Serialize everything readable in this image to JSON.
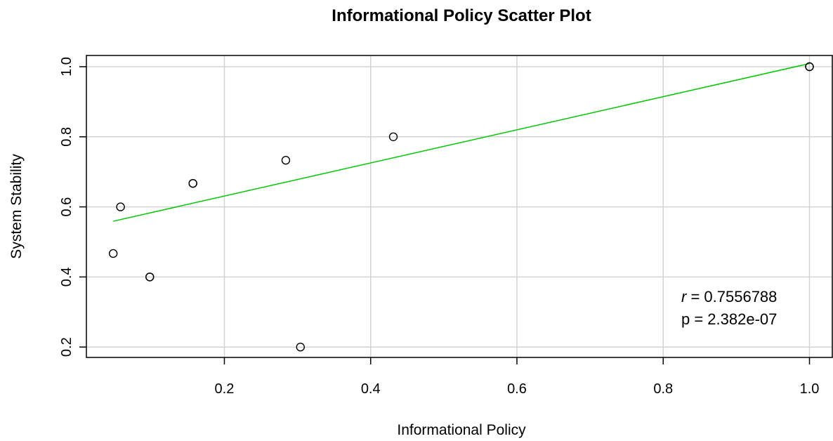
{
  "chart_data": {
    "type": "scatter",
    "title": "Informational Policy Scatter Plot",
    "xlabel": "Informational Policy",
    "ylabel": "System Stability",
    "xlim": [
      0.0,
      1.0
    ],
    "ylim": [
      0.2,
      1.0
    ],
    "x_ticks": [
      0.2,
      0.4,
      0.6,
      0.8,
      1.0
    ],
    "x_tick_labels": [
      "0.2",
      "0.4",
      "0.6",
      "0.8",
      "1.0"
    ],
    "y_ticks": [
      0.2,
      0.4,
      0.6,
      0.8,
      1.0
    ],
    "y_tick_labels": [
      "0.2",
      "0.4",
      "0.6",
      "0.8",
      "1.0"
    ],
    "grid": true,
    "points": [
      {
        "x": 0.048,
        "y": 0.467
      },
      {
        "x": 0.058,
        "y": 0.6
      },
      {
        "x": 0.098,
        "y": 0.4
      },
      {
        "x": 0.098,
        "y": 0.4
      },
      {
        "x": 0.157,
        "y": 0.667
      },
      {
        "x": 0.157,
        "y": 0.667
      },
      {
        "x": 0.284,
        "y": 0.733
      },
      {
        "x": 0.304,
        "y": 0.2
      },
      {
        "x": 0.431,
        "y": 0.8
      },
      {
        "x": 1.0,
        "y": 1.0
      },
      {
        "x": 1.0,
        "y": 1.0
      }
    ],
    "fit_line": {
      "x": [
        0.048,
        1.0
      ],
      "y": [
        0.559,
        1.009
      ],
      "color": "#00c800"
    },
    "annotation": {
      "r_symbol": "r",
      "r_text": " = 0.7556788",
      "p_text": "p = 2.382e-07"
    },
    "colors": {
      "points": "#000000",
      "grid": "#d3d3d3",
      "fit": "#00c800"
    }
  }
}
